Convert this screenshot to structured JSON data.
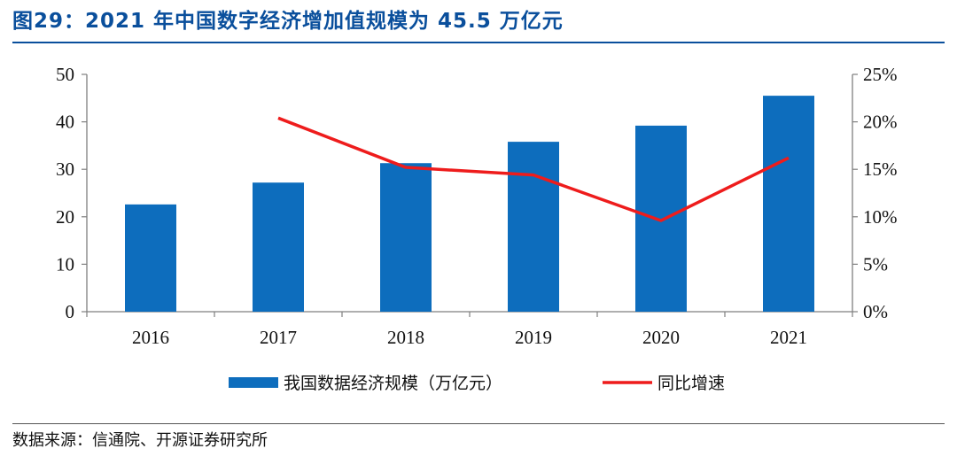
{
  "header": {
    "title": "图29：2021 年中国数字经济增加值规模为 45.5 万亿元"
  },
  "footer": {
    "source": "数据来源：信通院、开源证券研究所"
  },
  "colors": {
    "bar": "#0d6dbd",
    "line": "#ee1c1c",
    "title": "#0a4f9c"
  },
  "chart_data": {
    "type": "bar",
    "title": "2021 年中国数字经济增加值规模为 45.5 万亿元",
    "categories": [
      "2016",
      "2017",
      "2018",
      "2019",
      "2020",
      "2021"
    ],
    "series": [
      {
        "name": "我国数据经济规模（万亿元）",
        "type": "bar",
        "axis": "left",
        "values": [
          22.6,
          27.2,
          31.3,
          35.8,
          39.2,
          45.5
        ]
      },
      {
        "name": "同比增速",
        "type": "line",
        "axis": "right",
        "values": [
          null,
          20.4,
          15.2,
          14.4,
          9.6,
          16.2
        ]
      }
    ],
    "yleft": {
      "min": 0,
      "max": 50,
      "ticks": [
        "0",
        "10",
        "20",
        "30",
        "40",
        "50"
      ]
    },
    "yright": {
      "min": 0,
      "max": 25,
      "ticks": [
        "0%",
        "5%",
        "10%",
        "15%",
        "20%",
        "25%"
      ]
    },
    "legend": [
      "我国数据经济规模（万亿元）",
      "同比增速"
    ],
    "legend_position": "bottom-center",
    "grid": false
  }
}
